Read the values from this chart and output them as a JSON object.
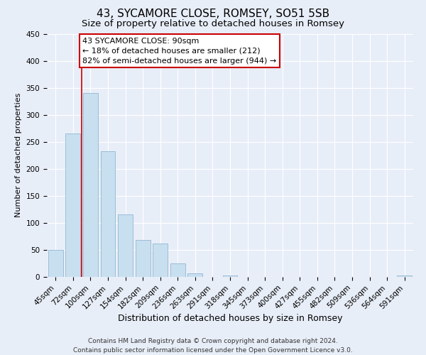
{
  "title": "43, SYCAMORE CLOSE, ROMSEY, SO51 5SB",
  "subtitle": "Size of property relative to detached houses in Romsey",
  "xlabel": "Distribution of detached houses by size in Romsey",
  "ylabel": "Number of detached properties",
  "bar_labels": [
    "45sqm",
    "72sqm",
    "100sqm",
    "127sqm",
    "154sqm",
    "182sqm",
    "209sqm",
    "236sqm",
    "263sqm",
    "291sqm",
    "318sqm",
    "345sqm",
    "373sqm",
    "400sqm",
    "427sqm",
    "455sqm",
    "482sqm",
    "509sqm",
    "536sqm",
    "564sqm",
    "591sqm"
  ],
  "bar_values": [
    50,
    265,
    340,
    232,
    115,
    68,
    62,
    25,
    7,
    0,
    2,
    0,
    0,
    0,
    0,
    0,
    0,
    0,
    0,
    0,
    2
  ],
  "bar_color": "#c8dff0",
  "bar_edge_color": "#9bbdd6",
  "vline_x_index": 2,
  "vline_color": "#cc0000",
  "annotation_title": "43 SYCAMORE CLOSE: 90sqm",
  "annotation_line1": "← 18% of detached houses are smaller (212)",
  "annotation_line2": "82% of semi-detached houses are larger (944) →",
  "annotation_box_color": "white",
  "annotation_box_edge": "#cc0000",
  "ylim": [
    0,
    450
  ],
  "yticks": [
    0,
    50,
    100,
    150,
    200,
    250,
    300,
    350,
    400,
    450
  ],
  "footer1": "Contains HM Land Registry data © Crown copyright and database right 2024.",
  "footer2": "Contains public sector information licensed under the Open Government Licence v3.0.",
  "background_color": "#e8eef8",
  "grid_color": "#ffffff",
  "title_fontsize": 11,
  "subtitle_fontsize": 9.5,
  "xlabel_fontsize": 9,
  "ylabel_fontsize": 8,
  "tick_fontsize": 7.5,
  "annotation_fontsize": 8,
  "footer_fontsize": 6.5
}
